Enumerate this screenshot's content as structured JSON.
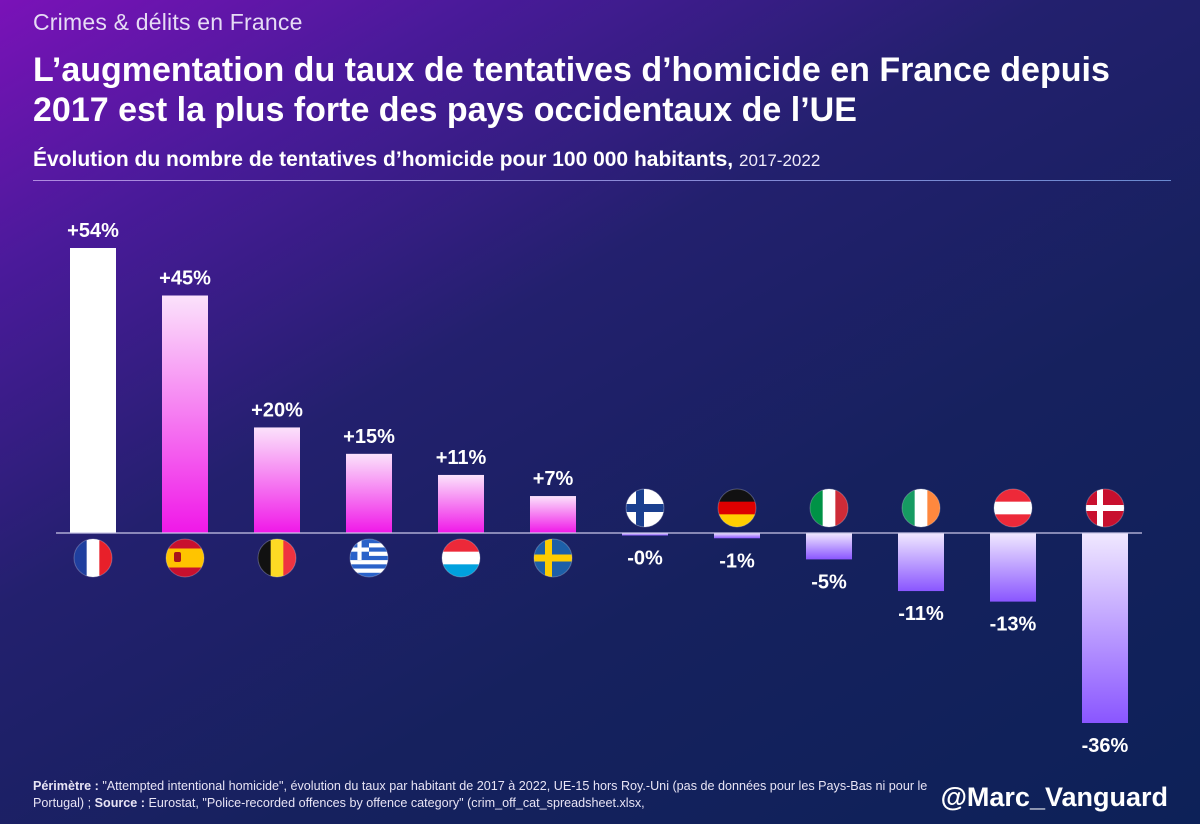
{
  "header": {
    "kicker": "Crimes & délits en France",
    "title": "L’augmentation du taux de tentatives d’homicide en France depuis 2017 est la plus forte des pays occidentaux de l’UE",
    "subtitle_bold": "Évolution du nombre de tentatives d’homicide pour 100 000 habitants,",
    "subtitle_years": "2017-2022"
  },
  "chart_data": {
    "type": "bar",
    "title": "Évolution du nombre de tentatives d’homicide pour 100 000 habitants, 2017-2022",
    "categories": [
      "France",
      "Espagne",
      "Belgique",
      "Grèce",
      "Luxembourg",
      "Suède",
      "Finlande",
      "Allemagne",
      "Italie",
      "Irlande",
      "Autriche",
      "Danemark"
    ],
    "values": [
      54,
      45,
      20,
      15,
      11,
      7,
      -0.3,
      -1,
      -5,
      -11,
      -13,
      -36
    ],
    "labels": [
      "+54%",
      "+45%",
      "+20%",
      "+15%",
      "+11%",
      "+7%",
      "-0%",
      "-1%",
      "-5%",
      "-11%",
      "-13%",
      "-36%"
    ],
    "unit": "%",
    "xlabel": "",
    "ylabel": "",
    "grid": false,
    "colors": {
      "highlight": "#ffffff",
      "positive": "#f020e0",
      "negative": "#8a5cff",
      "axis": "#c9c6e8"
    }
  },
  "footnote": {
    "perimetre_label": "Périmètre :",
    "perimetre_text": "\"Attempted intentional homicide\", évolution du taux par habitant de 2017 à 2022, UE-15 hors Roy.-Uni (pas de données pour les Pays-Bas ni pour le Portugal)  ;",
    "source_label": "Source :",
    "source_text": "Eurostat, \"Police-recorded offences by offence category\" (crim_off_cat_spreadsheet.xlsx,"
  },
  "handle": "@Marc_Vanguard"
}
